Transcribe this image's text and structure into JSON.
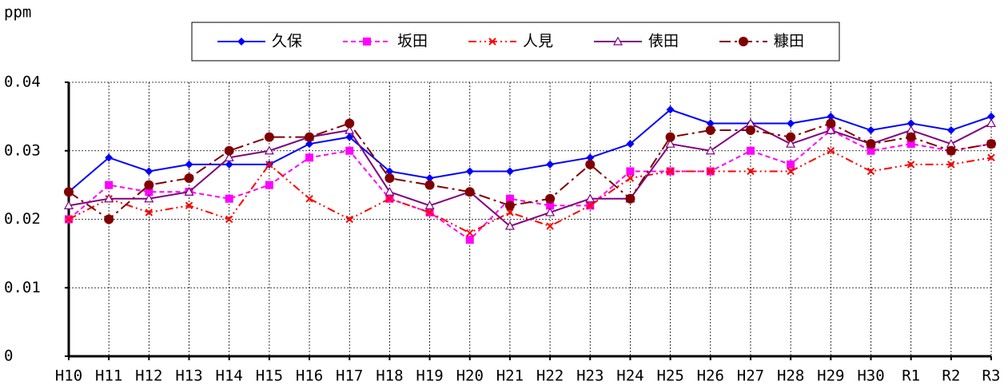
{
  "chart_data": {
    "type": "line",
    "y_label": "ppm",
    "categories": [
      "H10",
      "H11",
      "H12",
      "H13",
      "H14",
      "H15",
      "H16",
      "H17",
      "H18",
      "H19",
      "H20",
      "H21",
      "H22",
      "H23",
      "H24",
      "H25",
      "H26",
      "H27",
      "H28",
      "H29",
      "H30",
      "R1",
      "R2",
      "R3"
    ],
    "ylim": [
      0,
      0.04
    ],
    "yticks": [
      0,
      0.01,
      0.02,
      0.03,
      0.04
    ],
    "grid": true,
    "legend": "top",
    "series": [
      {
        "name": "久保",
        "color": "#0000ff",
        "marker": "diamond",
        "dash": "solid",
        "values": [
          0.024,
          0.029,
          0.027,
          0.028,
          0.028,
          0.028,
          0.031,
          0.032,
          0.027,
          0.026,
          0.027,
          0.027,
          0.028,
          0.029,
          0.031,
          0.036,
          0.034,
          0.034,
          0.034,
          0.035,
          0.033,
          0.034,
          0.033,
          0.035
        ]
      },
      {
        "name": "坂田",
        "color": "#ff00ff",
        "marker": "square",
        "dash": "dashed",
        "values": [
          0.02,
          0.025,
          0.024,
          0.024,
          0.023,
          0.025,
          0.029,
          0.03,
          0.023,
          0.021,
          0.017,
          0.023,
          0.022,
          0.022,
          0.027,
          0.027,
          0.027,
          0.03,
          0.028,
          0.033,
          0.03,
          0.031,
          0.03,
          0.031
        ]
      },
      {
        "name": "人見",
        "color": "#ff0000",
        "marker": "x",
        "dash": "dashdotdot",
        "values": [
          0.02,
          0.023,
          0.021,
          0.022,
          0.02,
          0.028,
          0.023,
          0.02,
          0.023,
          0.021,
          0.018,
          0.021,
          0.019,
          0.022,
          0.026,
          0.027,
          0.027,
          0.027,
          0.027,
          0.03,
          0.027,
          0.028,
          0.028,
          0.029
        ]
      },
      {
        "name": "俵田",
        "color": "#800080",
        "marker": "triangle",
        "dash": "solid",
        "values": [
          0.022,
          0.023,
          0.023,
          0.024,
          0.029,
          0.03,
          0.032,
          0.033,
          0.024,
          0.022,
          0.024,
          0.019,
          0.021,
          0.023,
          0.023,
          0.031,
          0.03,
          0.034,
          0.031,
          0.033,
          0.031,
          0.033,
          0.031,
          0.034
        ]
      },
      {
        "name": "糠田",
        "color": "#800000",
        "marker": "circle",
        "dash": "dashdot",
        "values": [
          0.024,
          0.02,
          0.025,
          0.026,
          0.03,
          0.032,
          0.032,
          0.034,
          0.026,
          0.025,
          0.024,
          0.022,
          0.023,
          0.028,
          0.023,
          0.032,
          0.033,
          0.033,
          0.032,
          0.034,
          0.031,
          0.032,
          0.03,
          0.031
        ]
      }
    ]
  }
}
